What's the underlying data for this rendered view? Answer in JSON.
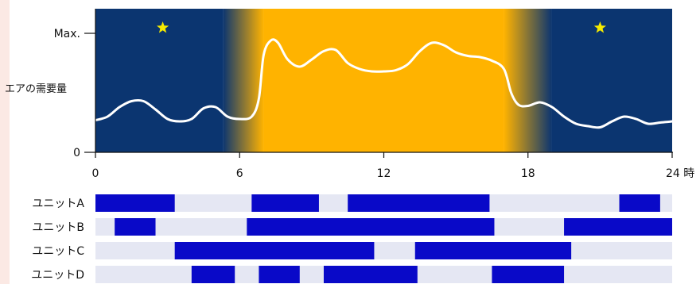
{
  "colors": {
    "night": "#0b3570",
    "day": "#ffb300",
    "curve": "#ffffff",
    "star": "#f5ea00",
    "unit_on": "#0909c8",
    "unit_track": "#e5e7f3",
    "left_strip": "#fbe9e4",
    "axis": "#111111"
  },
  "chart_data": {
    "type": "area",
    "ylabel": "エアの需要量",
    "y_tick_labels": [
      "Max.",
      "0"
    ],
    "x_ticks": [
      0,
      6,
      12,
      18,
      24
    ],
    "x_unit": "時",
    "xlim": [
      0,
      24
    ],
    "ylim": [
      0,
      1
    ],
    "daytime": {
      "start": 7,
      "end": 17
    },
    "dusk_transitions": [
      [
        5.3,
        7
      ],
      [
        17,
        19
      ]
    ],
    "star_icons_at": [
      2.8,
      21
    ],
    "demand_curve": {
      "x": [
        0,
        0.5,
        1,
        1.5,
        2,
        2.5,
        3,
        3.5,
        4,
        4.5,
        5,
        5.5,
        6,
        6.5,
        6.8,
        7,
        7.3,
        7.6,
        8,
        8.5,
        9,
        9.5,
        10,
        10.5,
        11,
        11.5,
        12,
        12.5,
        13,
        13.5,
        14,
        14.5,
        15,
        15.5,
        16,
        16.5,
        17,
        17.3,
        17.6,
        18,
        18.5,
        19,
        19.5,
        20,
        20.5,
        21,
        21.5,
        22,
        22.5,
        23,
        23.5,
        24
      ],
      "y": [
        0.27,
        0.3,
        0.38,
        0.43,
        0.43,
        0.36,
        0.28,
        0.26,
        0.28,
        0.37,
        0.38,
        0.3,
        0.28,
        0.3,
        0.45,
        0.82,
        0.94,
        0.92,
        0.78,
        0.72,
        0.78,
        0.85,
        0.86,
        0.75,
        0.7,
        0.68,
        0.68,
        0.69,
        0.74,
        0.85,
        0.92,
        0.9,
        0.84,
        0.81,
        0.8,
        0.77,
        0.7,
        0.5,
        0.4,
        0.39,
        0.42,
        0.38,
        0.3,
        0.24,
        0.22,
        0.21,
        0.26,
        0.3,
        0.28,
        0.24,
        0.25,
        0.26
      ]
    },
    "units": [
      {
        "name": "ユニットA",
        "on": [
          [
            0,
            3.3
          ],
          [
            6.5,
            9.3
          ],
          [
            10.5,
            16.4
          ],
          [
            21.8,
            23.5
          ]
        ]
      },
      {
        "name": "ユニットB",
        "on": [
          [
            0.8,
            2.5
          ],
          [
            6.3,
            16.6
          ],
          [
            19.5,
            24
          ]
        ]
      },
      {
        "name": "ユニットC",
        "on": [
          [
            3.3,
            11.6
          ],
          [
            13.3,
            19.8
          ]
        ]
      },
      {
        "name": "ユニットD",
        "on": [
          [
            4,
            5.8
          ],
          [
            6.8,
            8.5
          ],
          [
            9.5,
            13.4
          ],
          [
            16.5,
            19.5
          ]
        ]
      }
    ]
  }
}
